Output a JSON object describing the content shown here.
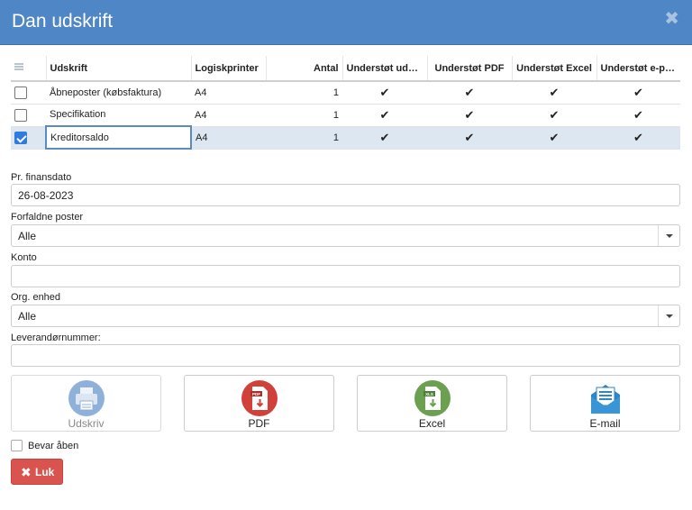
{
  "dialog": {
    "title": "Dan udskrift",
    "close_symbol": "✖"
  },
  "grid": {
    "columns": [
      "Udskrift",
      "Logiskprinter",
      "Antal",
      "Understøt uds…",
      "Understøt PDF",
      "Understøt Excel",
      "Understøt e-post"
    ],
    "rows": [
      {
        "checked": false,
        "udskrift": "Åbneposter (købsfaktura)",
        "printer": "A4",
        "antal": "1",
        "uds": "✔",
        "pdf": "✔",
        "excel": "✔",
        "epost": "✔"
      },
      {
        "checked": false,
        "udskrift": "Specifikation",
        "printer": "A4",
        "antal": "1",
        "uds": "✔",
        "pdf": "✔",
        "excel": "✔",
        "epost": "✔"
      },
      {
        "checked": true,
        "udskrift": "Kreditorsaldo",
        "printer": "A4",
        "antal": "1",
        "uds": "✔",
        "pdf": "✔",
        "excel": "✔",
        "epost": "✔"
      }
    ]
  },
  "form": {
    "finansdato": {
      "label": "Pr. finansdato",
      "value": "26-08-2023"
    },
    "forfaldne": {
      "label": "Forfaldne poster",
      "value": "Alle"
    },
    "konto": {
      "label": "Konto",
      "value": ""
    },
    "org": {
      "label": "Org. enhed",
      "value": "Alle"
    },
    "leverandor": {
      "label": "Leverandørnummer:",
      "value": ""
    }
  },
  "actions": {
    "udskriv": "Udskriv",
    "pdf": "PDF",
    "pdf_badge": "PDF",
    "excel": "Excel",
    "excel_badge": "XLS",
    "email": "E-mail"
  },
  "bevar_aaben": {
    "label": "Bevar åben",
    "checked": false
  },
  "luk": {
    "label": "Luk",
    "icon": "✖"
  },
  "colors": {
    "header": "#4f86c6",
    "selected_row": "#dde7f2",
    "checkbox_checked": "#2f7be0",
    "luk_button": "#d9534f",
    "print_icon": "#8fb0d9",
    "pdf_icon": "#d0413a",
    "excel_icon": "#6aa04f",
    "email_icon": "#2f86c6"
  },
  "icons": {
    "grid_header": "list-icon",
    "print": "printer-icon",
    "pdf": "pdf-file-icon",
    "excel": "excel-file-icon",
    "email": "envelope-icon",
    "close": "close-icon"
  }
}
